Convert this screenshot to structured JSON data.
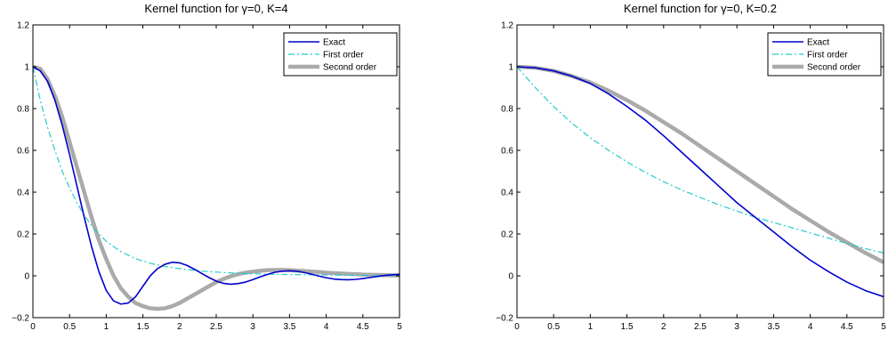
{
  "chart_data": [
    {
      "type": "line",
      "title": "Kernel function for γ=0, K=4",
      "xlabel": "",
      "ylabel": "",
      "xlim": [
        0,
        5
      ],
      "ylim": [
        -0.2,
        1.2
      ],
      "xticks": [
        "0",
        "0.5",
        "1",
        "1.5",
        "2",
        "2.5",
        "3",
        "3.5",
        "4",
        "4.5",
        "5"
      ],
      "yticks": [
        "−0.2",
        "0",
        "0.2",
        "0.4",
        "0.6",
        "0.8",
        "1",
        "1.2"
      ],
      "grid": false,
      "legend_position": "top-right",
      "series": [
        {
          "name": "Exact",
          "color": "#0000cc",
          "style": "solid",
          "x": [
            0,
            0.1,
            0.2,
            0.3,
            0.4,
            0.5,
            0.6,
            0.7,
            0.8,
            0.9,
            1.0,
            1.1,
            1.2,
            1.3,
            1.4,
            1.5,
            1.6,
            1.7,
            1.8,
            1.9,
            2.0,
            2.1,
            2.2,
            2.3,
            2.4,
            2.5,
            2.6,
            2.7,
            2.8,
            2.9,
            3.0,
            3.1,
            3.2,
            3.3,
            3.4,
            3.5,
            3.6,
            3.7,
            3.8,
            3.9,
            4.0,
            4.1,
            4.2,
            4.3,
            4.4,
            4.5,
            4.6,
            4.7,
            4.8,
            4.9,
            5.0
          ],
          "y": [
            1.0,
            0.98,
            0.93,
            0.84,
            0.72,
            0.58,
            0.43,
            0.28,
            0.14,
            0.02,
            -0.07,
            -0.12,
            -0.135,
            -0.13,
            -0.1,
            -0.05,
            0.0,
            0.035,
            0.055,
            0.065,
            0.062,
            0.05,
            0.032,
            0.012,
            -0.008,
            -0.025,
            -0.036,
            -0.04,
            -0.037,
            -0.03,
            -0.018,
            -0.005,
            0.007,
            0.017,
            0.022,
            0.024,
            0.022,
            0.016,
            0.008,
            -0.001,
            -0.009,
            -0.015,
            -0.018,
            -0.019,
            -0.017,
            -0.013,
            -0.008,
            -0.003,
            0.002,
            0.005,
            0.007
          ]
        },
        {
          "name": "First order",
          "color": "#22cccc",
          "style": "dashdot",
          "x": [
            0,
            0.1,
            0.2,
            0.3,
            0.4,
            0.5,
            0.6,
            0.7,
            0.8,
            0.9,
            1.0,
            1.2,
            1.4,
            1.6,
            1.8,
            2.0,
            2.2,
            2.4,
            2.6,
            2.8,
            3.0,
            3.5,
            4.0,
            4.5,
            5.0
          ],
          "y": [
            1.0,
            0.84,
            0.71,
            0.6,
            0.5,
            0.42,
            0.35,
            0.29,
            0.24,
            0.2,
            0.165,
            0.115,
            0.082,
            0.06,
            0.045,
            0.034,
            0.026,
            0.02,
            0.016,
            0.012,
            0.01,
            0.006,
            0.004,
            0.002,
            0.001
          ]
        },
        {
          "name": "Second order",
          "color": "#aaaaaa",
          "style": "thick",
          "x": [
            0,
            0.1,
            0.2,
            0.3,
            0.4,
            0.5,
            0.6,
            0.7,
            0.8,
            0.9,
            1.0,
            1.1,
            1.2,
            1.3,
            1.4,
            1.5,
            1.6,
            1.7,
            1.8,
            1.9,
            2.0,
            2.1,
            2.2,
            2.3,
            2.4,
            2.5,
            2.6,
            2.7,
            2.8,
            2.9,
            3.0,
            3.1,
            3.2,
            3.3,
            3.4,
            3.5,
            3.6,
            3.7,
            3.8,
            3.9,
            4.0,
            4.1,
            4.2,
            4.3,
            4.4,
            4.5,
            4.6,
            4.7,
            4.8,
            4.9,
            5.0
          ],
          "y": [
            1.0,
            0.99,
            0.94,
            0.86,
            0.76,
            0.64,
            0.52,
            0.4,
            0.28,
            0.17,
            0.08,
            0.0,
            -0.06,
            -0.1,
            -0.13,
            -0.145,
            -0.155,
            -0.158,
            -0.155,
            -0.145,
            -0.13,
            -0.11,
            -0.09,
            -0.07,
            -0.05,
            -0.03,
            -0.015,
            -0.002,
            0.008,
            0.015,
            0.02,
            0.024,
            0.027,
            0.028,
            0.028,
            0.027,
            0.025,
            0.023,
            0.02,
            0.018,
            0.015,
            0.013,
            0.011,
            0.009,
            0.008,
            0.006,
            0.005,
            0.004,
            0.003,
            0.002,
            0.002
          ]
        }
      ]
    },
    {
      "type": "line",
      "title": "Kernel function for γ=0, K=0.2",
      "xlabel": "",
      "ylabel": "",
      "xlim": [
        0,
        5
      ],
      "ylim": [
        -0.2,
        1.2
      ],
      "xticks": [
        "0",
        "0.5",
        "1",
        "1.5",
        "2",
        "2.5",
        "3",
        "3.5",
        "4",
        "4.5",
        "5"
      ],
      "yticks": [
        "−0.2",
        "0",
        "0.2",
        "0.4",
        "0.6",
        "0.8",
        "1",
        "1.2"
      ],
      "grid": false,
      "legend_position": "top-right",
      "series": [
        {
          "name": "Exact",
          "color": "#0000cc",
          "style": "solid",
          "x": [
            0,
            0.25,
            0.5,
            0.75,
            1.0,
            1.25,
            1.5,
            1.75,
            2.0,
            2.25,
            2.5,
            2.75,
            3.0,
            3.25,
            3.5,
            3.75,
            4.0,
            4.25,
            4.5,
            4.75,
            5.0
          ],
          "y": [
            1.0,
            0.995,
            0.98,
            0.955,
            0.92,
            0.87,
            0.81,
            0.745,
            0.67,
            0.59,
            0.51,
            0.43,
            0.35,
            0.28,
            0.21,
            0.14,
            0.075,
            0.02,
            -0.03,
            -0.07,
            -0.1
          ]
        },
        {
          "name": "First order",
          "color": "#22cccc",
          "style": "dashdot",
          "x": [
            0,
            0.25,
            0.5,
            0.75,
            1.0,
            1.25,
            1.5,
            1.75,
            2.0,
            2.25,
            2.5,
            2.75,
            3.0,
            3.25,
            3.5,
            3.75,
            4.0,
            4.25,
            4.5,
            4.75,
            5.0
          ],
          "y": [
            1.0,
            0.9,
            0.81,
            0.73,
            0.66,
            0.6,
            0.545,
            0.495,
            0.45,
            0.41,
            0.375,
            0.34,
            0.31,
            0.28,
            0.255,
            0.23,
            0.205,
            0.18,
            0.155,
            0.13,
            0.11
          ]
        },
        {
          "name": "Second order",
          "color": "#aaaaaa",
          "style": "thick",
          "x": [
            0,
            0.25,
            0.5,
            0.75,
            1.0,
            1.25,
            1.5,
            1.75,
            2.0,
            2.25,
            2.5,
            2.75,
            3.0,
            3.25,
            3.5,
            3.75,
            4.0,
            4.25,
            4.5,
            4.75,
            5.0
          ],
          "y": [
            1.0,
            0.995,
            0.98,
            0.955,
            0.925,
            0.885,
            0.84,
            0.79,
            0.735,
            0.68,
            0.62,
            0.56,
            0.5,
            0.44,
            0.38,
            0.32,
            0.265,
            0.21,
            0.16,
            0.11,
            0.065
          ]
        }
      ]
    }
  ]
}
